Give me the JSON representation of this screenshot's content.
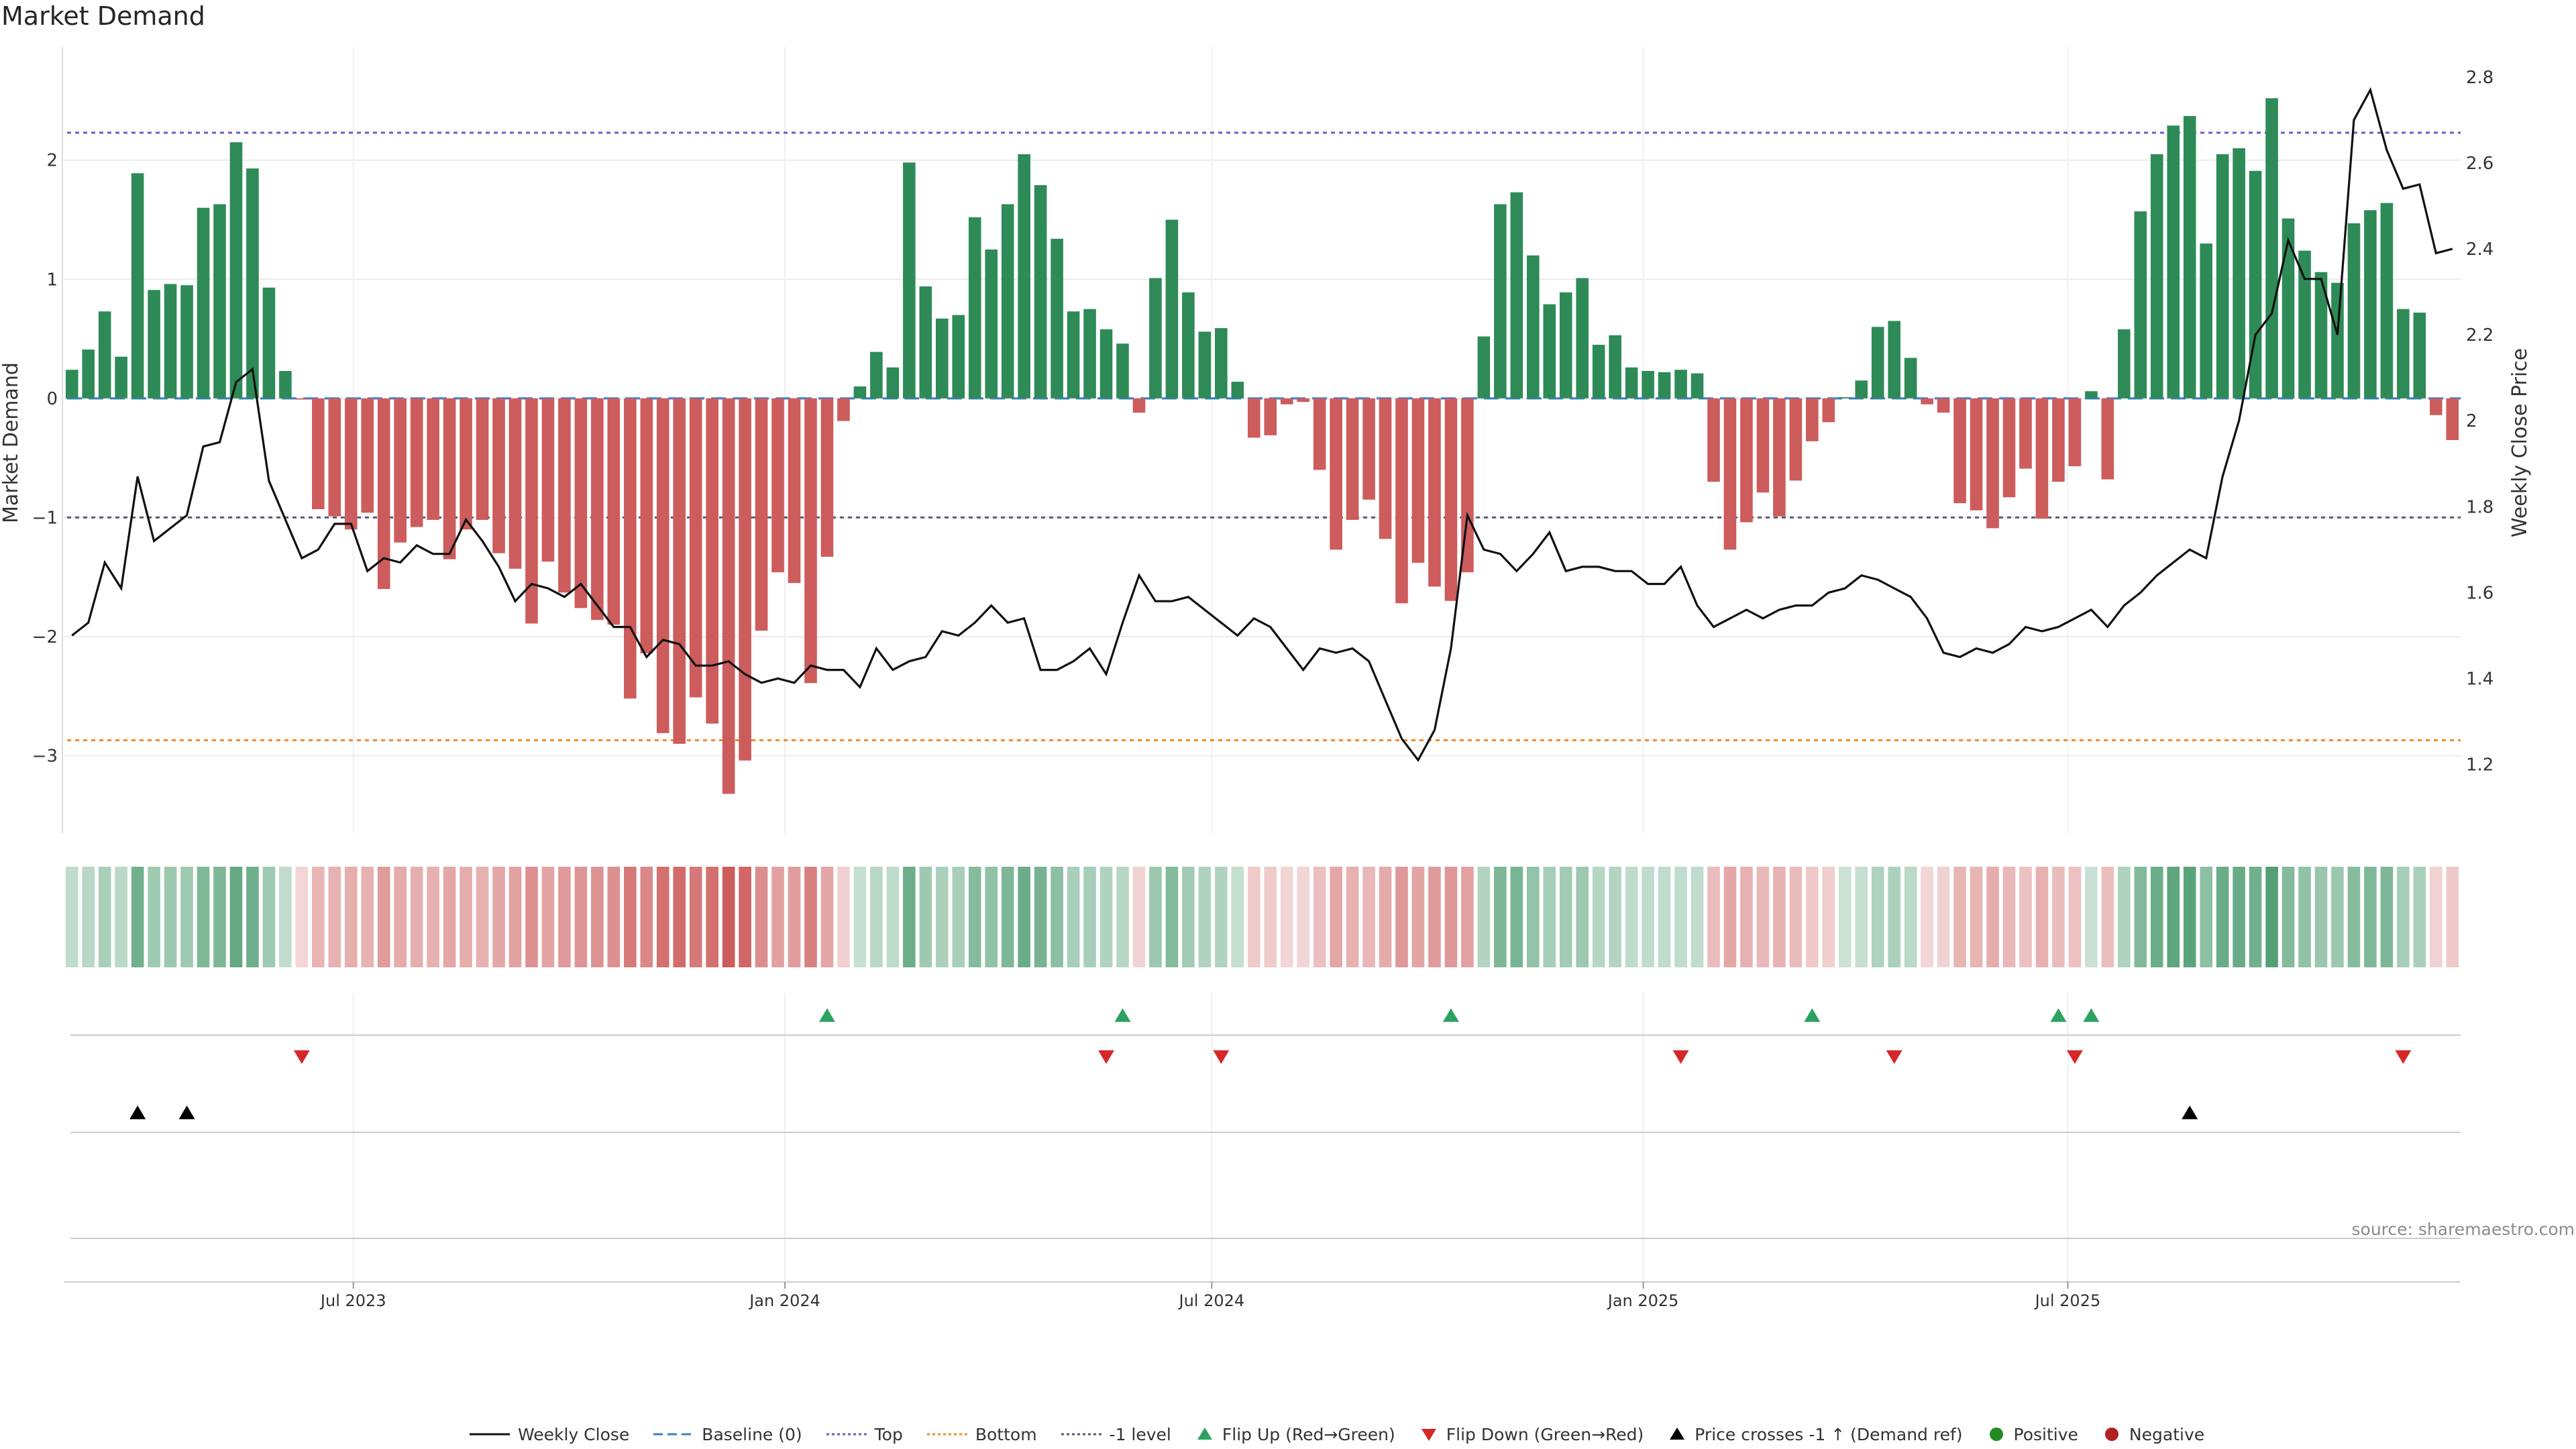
{
  "chart_data": {
    "type": "bar",
    "title": "Market Demand",
    "ylabel": "Market Demand",
    "y2label": "Weekly Close Price",
    "ylim": [
      -3.65,
      2.95
    ],
    "y2lim": [
      1.04,
      2.87
    ],
    "yticks": [
      -3,
      -2,
      -1,
      0,
      1,
      2
    ],
    "y2ticks": [
      1.2,
      1.4,
      1.6,
      1.8,
      2.0,
      2.2,
      2.4,
      2.6,
      2.8
    ],
    "y2ticklabels": [
      "1.2",
      "1.4",
      "1.6",
      "1.8",
      "2",
      "2.2",
      "2.4",
      "2.6",
      "2.8"
    ],
    "x_start": "2023-03-03",
    "week_step_days": 7,
    "xtick_labels": [
      "Jul 2023",
      "Jan 2024",
      "Jul 2024",
      "Jan 2025",
      "Jul 2025"
    ],
    "xtick_dates": [
      "2023-07-01",
      "2024-01-01",
      "2024-07-01",
      "2025-01-01",
      "2025-07-01"
    ],
    "demand": [
      0.24,
      0.41,
      0.73,
      0.35,
      1.89,
      0.91,
      0.96,
      0.95,
      1.6,
      1.63,
      2.15,
      1.93,
      0.93,
      0.23,
      -0.01,
      -0.93,
      -0.99,
      -1.1,
      -0.96,
      -1.6,
      -1.21,
      -1.08,
      -1.02,
      -1.35,
      -1.1,
      -1.02,
      -1.3,
      -1.43,
      -1.89,
      -1.37,
      -1.63,
      -1.76,
      -1.86,
      -1.9,
      -2.52,
      -2.14,
      -2.81,
      -2.9,
      -2.51,
      -2.73,
      -3.32,
      -3.04,
      -1.95,
      -1.46,
      -1.55,
      -2.39,
      -1.33,
      -0.19,
      0.1,
      0.39,
      0.26,
      1.98,
      0.94,
      0.67,
      0.7,
      1.52,
      1.25,
      1.63,
      2.05,
      1.79,
      1.34,
      0.73,
      0.75,
      0.58,
      0.46,
      -0.12,
      1.01,
      1.5,
      0.89,
      0.56,
      0.59,
      0.14,
      -0.33,
      -0.31,
      -0.05,
      -0.03,
      -0.6,
      -1.27,
      -1.02,
      -0.85,
      -1.18,
      -1.72,
      -1.38,
      -1.58,
      -1.7,
      -1.46,
      0.52,
      1.63,
      1.73,
      1.2,
      0.79,
      0.89,
      1.01,
      0.45,
      0.53,
      0.26,
      0.23,
      0.22,
      0.24,
      0.21,
      -0.7,
      -1.27,
      -1.04,
      -0.79,
      -0.99,
      -0.69,
      -0.36,
      -0.2,
      0.01,
      0.15,
      0.6,
      0.65,
      0.34,
      -0.05,
      -0.12,
      -0.88,
      -0.94,
      -1.09,
      -0.83,
      -0.59,
      -1.01,
      -0.7,
      -0.57,
      0.06,
      -0.68,
      0.58,
      1.57,
      2.05,
      2.29,
      2.37,
      1.3,
      2.05,
      2.1,
      1.91,
      2.52,
      1.51,
      1.24,
      1.06,
      0.97,
      1.47,
      1.58,
      1.64,
      0.75,
      0.72,
      -0.14,
      -0.35
    ],
    "close": [
      1.5,
      1.53,
      1.67,
      1.61,
      1.87,
      1.72,
      1.75,
      1.78,
      1.94,
      1.95,
      2.09,
      2.12,
      1.86,
      1.77,
      1.68,
      1.7,
      1.76,
      1.76,
      1.65,
      1.68,
      1.67,
      1.71,
      1.69,
      1.69,
      1.77,
      1.72,
      1.66,
      1.58,
      1.62,
      1.61,
      1.59,
      1.62,
      1.57,
      1.52,
      1.52,
      1.45,
      1.49,
      1.48,
      1.43,
      1.43,
      1.44,
      1.41,
      1.39,
      1.4,
      1.39,
      1.43,
      1.42,
      1.42,
      1.38,
      1.47,
      1.42,
      1.44,
      1.45,
      1.51,
      1.5,
      1.53,
      1.57,
      1.53,
      1.54,
      1.42,
      1.42,
      1.44,
      1.47,
      1.41,
      1.53,
      1.64,
      1.58,
      1.58,
      1.59,
      1.56,
      1.53,
      1.5,
      1.54,
      1.52,
      1.47,
      1.42,
      1.47,
      1.46,
      1.47,
      1.44,
      1.35,
      1.26,
      1.21,
      1.28,
      1.47,
      1.78,
      1.7,
      1.69,
      1.65,
      1.69,
      1.74,
      1.65,
      1.66,
      1.66,
      1.65,
      1.65,
      1.62,
      1.62,
      1.66,
      1.57,
      1.52,
      1.54,
      1.56,
      1.54,
      1.56,
      1.57,
      1.57,
      1.6,
      1.61,
      1.64,
      1.63,
      1.61,
      1.59,
      1.54,
      1.46,
      1.45,
      1.47,
      1.46,
      1.48,
      1.52,
      1.51,
      1.52,
      1.54,
      1.56,
      1.52,
      1.57,
      1.6,
      1.64,
      1.67,
      1.7,
      1.68,
      1.87,
      2.0,
      2.2,
      2.25,
      2.42,
      2.33,
      2.33,
      2.2,
      2.7,
      2.77,
      2.63,
      2.54,
      2.55,
      2.39,
      2.4
    ],
    "series": [
      {
        "name": "Weekly Close",
        "axis": "right",
        "color": "#111111"
      },
      {
        "name": "Baseline (0)",
        "value": 0,
        "color": "#3d7fc4"
      },
      {
        "name": "Top",
        "value": 2.23,
        "color": "#6a5acd"
      },
      {
        "name": "Bottom",
        "value": -2.87,
        "color": "#f28c28"
      },
      {
        "name": "-1 level",
        "value": -1,
        "color": "#5a5a7a"
      }
    ],
    "flip_up_weeks": [
      46,
      64,
      84,
      106,
      121,
      123
    ],
    "flip_down_weeks": [
      14,
      63,
      70,
      98,
      111,
      122,
      142
    ],
    "price_cross_weeks": [
      4,
      7,
      129
    ],
    "legend": [
      "Weekly Close",
      "Baseline (0)",
      "Top",
      "Bottom",
      "-1 level",
      "Flip Up (Red→Green)",
      "Flip Down (Green→Red)",
      "Price crosses -1 ↑ (Demand ref)",
      "Positive",
      "Negative"
    ],
    "source": "source: sharemaestro.com",
    "colors": {
      "positive_bar": "#2e8b57",
      "negative_bar": "#cd5c5c",
      "flip_up": "#2ca25f",
      "flip_down": "#d62728",
      "cross": "#000000",
      "positive_dot": "#228b22",
      "negative_dot": "#b22222"
    }
  }
}
